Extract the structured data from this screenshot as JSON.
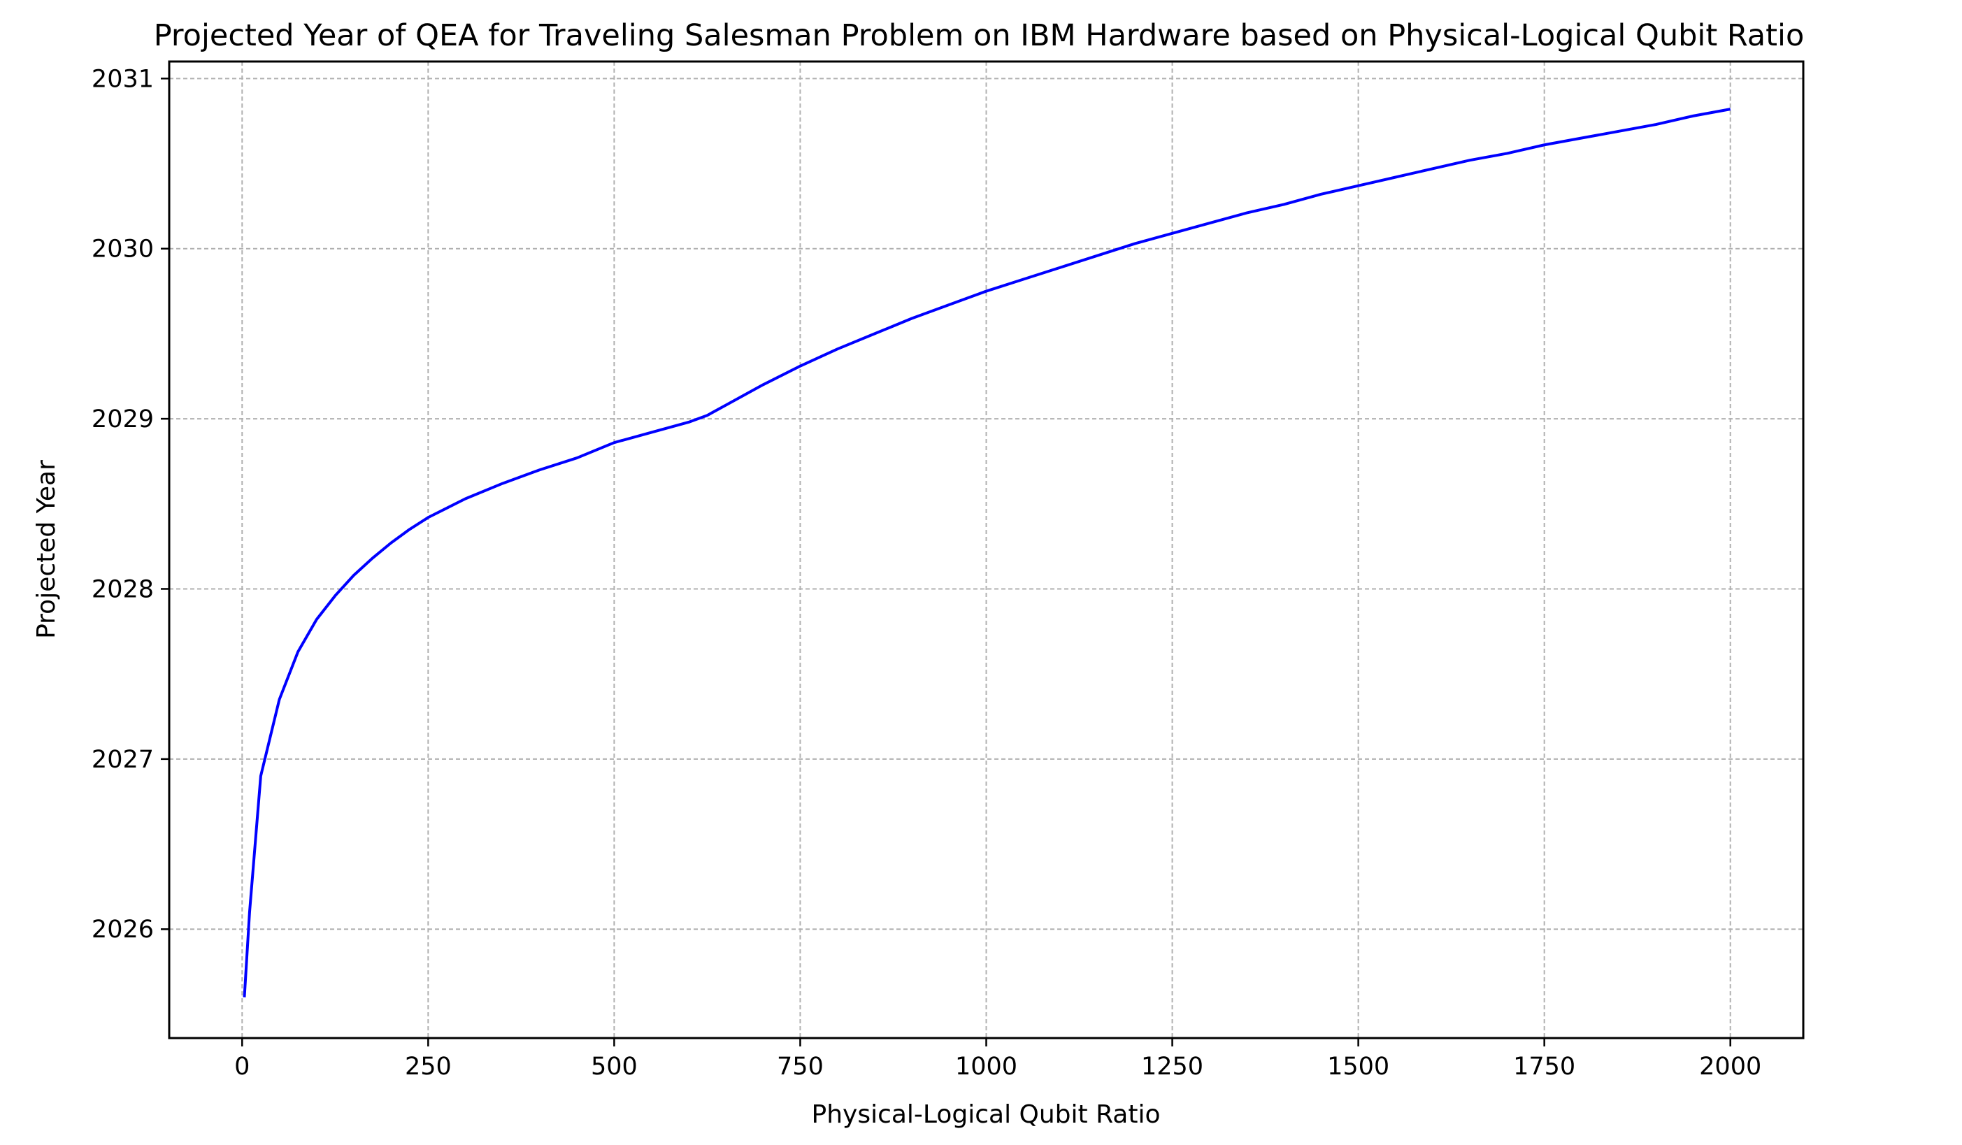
{
  "chart_data": {
    "type": "line",
    "title": "Projected Year of QEA for Traveling Salesman Problem on IBM Hardware based on Physical-Logical Qubit Ratio",
    "xlabel": "Physical-Logical Qubit Ratio",
    "ylabel": "Projected Year",
    "xlim": [
      -98,
      2098
    ],
    "ylim": [
      2025.36,
      2031.1
    ],
    "x_ticks": [
      0,
      250,
      500,
      750,
      1000,
      1250,
      1500,
      1750,
      2000
    ],
    "y_ticks": [
      2026,
      2027,
      2028,
      2029,
      2030,
      2031
    ],
    "grid": true,
    "line_color": "#0000ff",
    "grid_color": "#b0b0b0",
    "series": [
      {
        "x": [
          3,
          10,
          25,
          50,
          75,
          100,
          125,
          150,
          175,
          200,
          225,
          250,
          300,
          350,
          400,
          450,
          500,
          550,
          600,
          625,
          650,
          700,
          750,
          800,
          850,
          900,
          950,
          1000,
          1050,
          1100,
          1150,
          1200,
          1250,
          1300,
          1350,
          1400,
          1450,
          1500,
          1550,
          1600,
          1650,
          1700,
          1750,
          1800,
          1850,
          1900,
          1950,
          2000
        ],
        "y": [
          2025.6,
          2026.1,
          2026.9,
          2027.35,
          2027.63,
          2027.82,
          2027.96,
          2028.08,
          2028.18,
          2028.27,
          2028.35,
          2028.42,
          2028.53,
          2028.62,
          2028.7,
          2028.77,
          2028.86,
          2028.92,
          2028.98,
          2029.02,
          2029.08,
          2029.2,
          2029.31,
          2029.41,
          2029.5,
          2029.59,
          2029.67,
          2029.75,
          2029.82,
          2029.89,
          2029.96,
          2030.03,
          2030.09,
          2030.15,
          2030.21,
          2030.26,
          2030.32,
          2030.37,
          2030.42,
          2030.47,
          2030.52,
          2030.56,
          2030.61,
          2030.65,
          2030.69,
          2030.73,
          2030.78,
          2030.82
        ]
      }
    ]
  }
}
